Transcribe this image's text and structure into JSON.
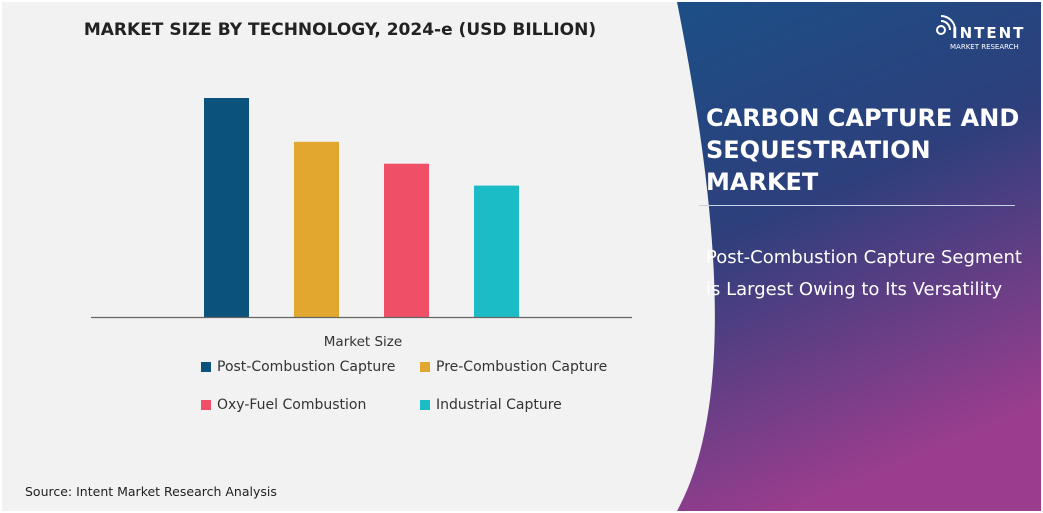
{
  "chart_data": {
    "type": "bar",
    "title": "MARKET SIZE BY TECHNOLOGY, 2024-e (USD BILLION)",
    "xlabel": "Market Size",
    "ylabel": "",
    "categories": [
      "Market Size"
    ],
    "series": [
      {
        "name": "Post-Combustion Capture",
        "values": [
          100
        ],
        "color": "#0b527c"
      },
      {
        "name": "Pre-Combustion Capture",
        "values": [
          80
        ],
        "color": "#e2a72e"
      },
      {
        "name": "Oxy-Fuel Combustion",
        "values": [
          70
        ],
        "color": "#ef5067"
      },
      {
        "name": "Industrial Capture",
        "values": [
          60
        ],
        "color": "#1cbcc6"
      }
    ],
    "ylim": [
      0,
      100
    ],
    "grid": false,
    "legend": "bottom"
  },
  "source": "Source: Intent Market Research Analysis",
  "panel": {
    "headline": "CARBON CAPTURE AND SEQUESTRATION MARKET",
    "insight": "Post-Combustion Capture Segment is Largest Owing to Its Versatility",
    "logo_word": "INTENT",
    "logo_sub": "MARKET RESEARCH"
  }
}
